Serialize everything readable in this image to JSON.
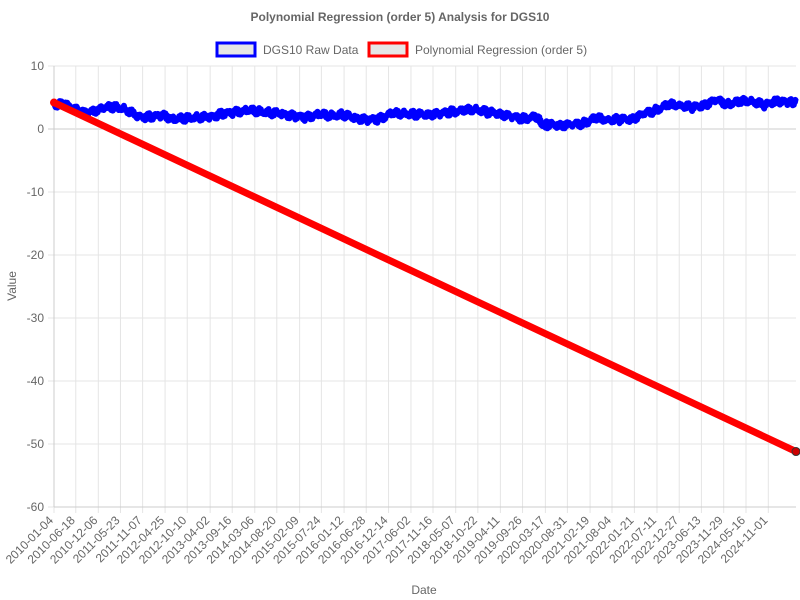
{
  "chart_data": {
    "type": "line",
    "title": "Polynomial Regression (order 5) Analysis for DGS10",
    "xlabel": "Date",
    "ylabel": "Value",
    "ylim": [
      -60,
      10
    ],
    "yticks": [
      10,
      0,
      -10,
      -20,
      -30,
      -40,
      -50,
      -60
    ],
    "xlim": [
      "2010-01-04",
      "2025-05-30"
    ],
    "x_tick_labels": [
      "2010-01-04",
      "2010-06-18",
      "2010-12-06",
      "2011-05-23",
      "2011-11-07",
      "2012-04-25",
      "2012-10-10",
      "2013-04-02",
      "2013-09-16",
      "2014-03-06",
      "2014-08-20",
      "2015-02-09",
      "2015-07-24",
      "2016-01-12",
      "2016-06-28",
      "2016-12-14",
      "2017-06-02",
      "2017-11-16",
      "2018-05-07",
      "2018-10-22",
      "2019-04-11",
      "2019-09-26",
      "2020-03-17",
      "2020-08-31",
      "2021-02-19",
      "2021-08-04",
      "2022-01-21",
      "2022-07-11",
      "2022-12-27",
      "2023-06-13",
      "2023-11-29",
      "2024-05-16",
      "2024-11-01"
    ],
    "grid": true,
    "legend_position": "top",
    "series": [
      {
        "name": "DGS10 Raw Data",
        "color": "#0000ff",
        "x": [
          "2010-01-04",
          "2010-04-01",
          "2010-07-01",
          "2010-10-01",
          "2011-01-03",
          "2011-04-01",
          "2011-07-01",
          "2011-10-03",
          "2012-01-03",
          "2012-04-02",
          "2012-07-02",
          "2012-10-01",
          "2013-01-02",
          "2013-04-01",
          "2013-07-01",
          "2013-10-01",
          "2014-01-02",
          "2014-04-01",
          "2014-07-01",
          "2014-10-01",
          "2015-01-02",
          "2015-04-01",
          "2015-07-01",
          "2015-10-01",
          "2016-01-04",
          "2016-04-01",
          "2016-07-01",
          "2016-10-03",
          "2017-01-03",
          "2017-04-03",
          "2017-07-03",
          "2017-10-02",
          "2018-01-02",
          "2018-04-02",
          "2018-07-02",
          "2018-10-01",
          "2019-01-02",
          "2019-04-01",
          "2019-07-01",
          "2019-10-01",
          "2020-01-02",
          "2020-03-09",
          "2020-04-01",
          "2020-07-01",
          "2020-10-01",
          "2021-01-04",
          "2021-04-01",
          "2021-07-01",
          "2021-10-01",
          "2022-01-03",
          "2022-04-01",
          "2022-07-01",
          "2022-10-03",
          "2023-01-03",
          "2023-04-03",
          "2023-07-03",
          "2023-10-02",
          "2024-01-02",
          "2024-04-01",
          "2024-07-01",
          "2024-10-01",
          "2025-01-02",
          "2025-04-01",
          "2025-05-30"
        ],
        "y": [
          3.85,
          3.9,
          2.95,
          2.55,
          3.4,
          3.45,
          3.15,
          1.9,
          2.0,
          2.2,
          1.6,
          1.65,
          1.85,
          1.85,
          2.5,
          2.65,
          3.0,
          2.75,
          2.55,
          2.4,
          2.1,
          1.85,
          2.35,
          2.05,
          2.25,
          1.8,
          1.5,
          1.6,
          2.45,
          2.4,
          2.3,
          2.35,
          2.45,
          2.75,
          2.87,
          3.1,
          2.66,
          2.5,
          2.0,
          1.65,
          1.9,
          0.54,
          0.7,
          0.66,
          0.69,
          0.93,
          1.7,
          1.45,
          1.5,
          1.65,
          2.4,
          3.0,
          3.8,
          3.79,
          3.4,
          3.86,
          4.6,
          3.95,
          4.3,
          4.45,
          3.75,
          4.57,
          4.2,
          4.4
        ]
      },
      {
        "name": "Polynomial Regression (order 5)",
        "color": "#ff0000",
        "x": [
          "2010-01-04",
          "2025-05-30"
        ],
        "y": [
          4.2,
          -51.2
        ]
      }
    ]
  }
}
